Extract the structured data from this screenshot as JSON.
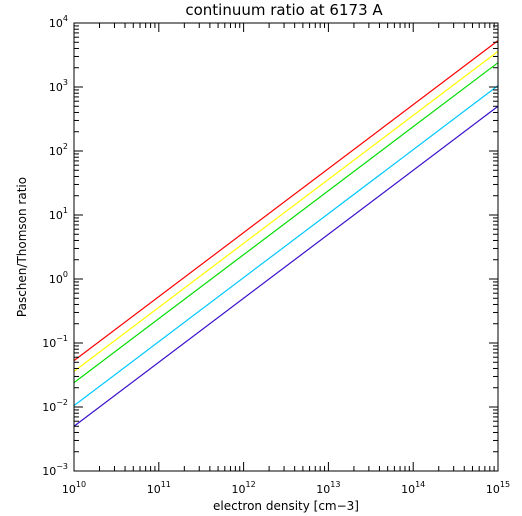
{
  "chart_data": {
    "type": "line",
    "title": "continuum ratio at 6173 A",
    "xlabel": "electron density [cm−3]",
    "ylabel": "Paschen/Thomson ratio",
    "xscale": "log",
    "yscale": "log",
    "xlim": [
      10000000000.0,
      1000000000000000.0
    ],
    "ylim": [
      0.001,
      10000
    ],
    "grid": false,
    "legend": "none",
    "x_ticks": [
      {
        "base": "10",
        "exp": "10"
      },
      {
        "base": "10",
        "exp": "11"
      },
      {
        "base": "10",
        "exp": "12"
      },
      {
        "base": "10",
        "exp": "13"
      },
      {
        "base": "10",
        "exp": "14"
      },
      {
        "base": "10",
        "exp": "15"
      }
    ],
    "y_ticks": [
      {
        "base": "10",
        "exp": "−3"
      },
      {
        "base": "10",
        "exp": "−2"
      },
      {
        "base": "10",
        "exp": "−1"
      },
      {
        "base": "10",
        "exp": "0"
      },
      {
        "base": "10",
        "exp": "1"
      },
      {
        "base": "10",
        "exp": "2"
      },
      {
        "base": "10",
        "exp": "3"
      },
      {
        "base": "10",
        "exp": "4"
      }
    ],
    "series": [
      {
        "color": "#ff0000",
        "x": [
          10000000000.0,
          1000000000000000.0
        ],
        "y": [
          0.053,
          5300
        ]
      },
      {
        "color": "#ffff00",
        "x": [
          10000000000.0,
          1000000000000000.0
        ],
        "y": [
          0.036,
          3600
        ]
      },
      {
        "color": "#00dd00",
        "x": [
          10000000000.0,
          1000000000000000.0
        ],
        "y": [
          0.024,
          2400
        ]
      },
      {
        "color": "#00c8ff",
        "x": [
          10000000000.0,
          1000000000000000.0
        ],
        "y": [
          0.0105,
          1050
        ]
      },
      {
        "color": "#3a10cc",
        "x": [
          10000000000.0,
          1000000000000000.0
        ],
        "y": [
          0.005,
          500
        ]
      }
    ]
  }
}
